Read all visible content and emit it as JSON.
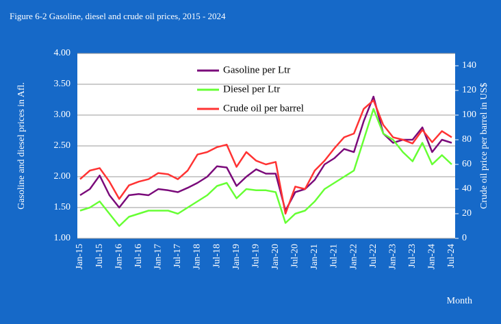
{
  "chart_data": {
    "type": "line",
    "title": "Figure  6-2 Gasoline,  diesel and crude oil prices, 2015 - 2024",
    "y_label": "Gasoline  and diesel prices in Afl.",
    "y2_label": "Crude oil price per barrel in US$",
    "x_label": "Month",
    "categories": [
      "Jan-15",
      null,
      "Jul-15",
      null,
      "Jan-16",
      null,
      "Jul-16",
      null,
      "Jan-17",
      null,
      "Jul-17",
      null,
      "Jan-18",
      null,
      "Jul-18",
      null,
      "Jan-19",
      null,
      "Jul-19",
      null,
      "Jan-20",
      null,
      "Jul-20",
      null,
      "Jan-21",
      null,
      "Jul-21",
      null,
      "Jan-22",
      null,
      "Jul-22",
      null,
      "Jan-23",
      null,
      "Jul-23",
      null,
      "Jan-24",
      null,
      "Jul-24"
    ],
    "series": [
      {
        "name": "Gasoline per Ltr",
        "color": "#7a0a7a",
        "values": [
          1.7,
          1.8,
          2.02,
          1.7,
          1.5,
          1.7,
          1.72,
          1.7,
          1.8,
          1.78,
          1.75,
          1.82,
          1.9,
          2.0,
          2.17,
          2.15,
          1.85,
          2.0,
          2.12,
          2.05,
          2.05,
          1.45,
          1.75,
          1.8,
          1.95,
          2.2,
          2.3,
          2.45,
          2.4,
          2.9,
          3.3,
          2.7,
          2.55,
          2.6,
          2.6,
          2.8,
          2.4,
          2.6,
          2.55
        ]
      },
      {
        "name": "Diesel per Ltr",
        "color": "#66ff33",
        "values": [
          1.45,
          1.5,
          1.6,
          1.4,
          1.2,
          1.35,
          1.4,
          1.45,
          1.45,
          1.45,
          1.4,
          1.5,
          1.6,
          1.7,
          1.85,
          1.9,
          1.65,
          1.8,
          1.78,
          1.78,
          1.75,
          1.25,
          1.4,
          1.45,
          1.6,
          1.8,
          1.9,
          2.0,
          2.1,
          2.6,
          3.1,
          2.7,
          2.6,
          2.4,
          2.25,
          2.55,
          2.2,
          2.35,
          2.2
        ]
      },
      {
        "name": "Crude oil per barrel",
        "color": "#ff3333",
        "axis": "y2",
        "values": [
          48,
          55,
          57,
          46,
          32,
          43,
          46,
          48,
          53,
          52,
          48,
          55,
          68,
          70,
          74,
          76,
          58,
          70,
          63,
          60,
          62,
          20,
          42,
          40,
          55,
          63,
          73,
          82,
          85,
          105,
          112,
          92,
          82,
          80,
          77,
          88,
          78,
          87,
          82
        ]
      }
    ],
    "ylim": [
      1,
      4
    ],
    "yticks": [
      {
        "value": 1,
        "label": "1.00"
      },
      {
        "value": 1.5,
        "label": "1.50"
      },
      {
        "value": 2,
        "label": "2.00"
      },
      {
        "value": 2.5,
        "label": "2.50"
      },
      {
        "value": 3,
        "label": "3.00"
      },
      {
        "value": 3.5,
        "label": "3.50"
      },
      {
        "value": 4,
        "label": "4.00"
      }
    ],
    "y2lim": [
      0,
      150
    ],
    "y2ticks": [
      0,
      20,
      40,
      60,
      80,
      100,
      120,
      140
    ],
    "grid": true,
    "legend": "upper center"
  }
}
